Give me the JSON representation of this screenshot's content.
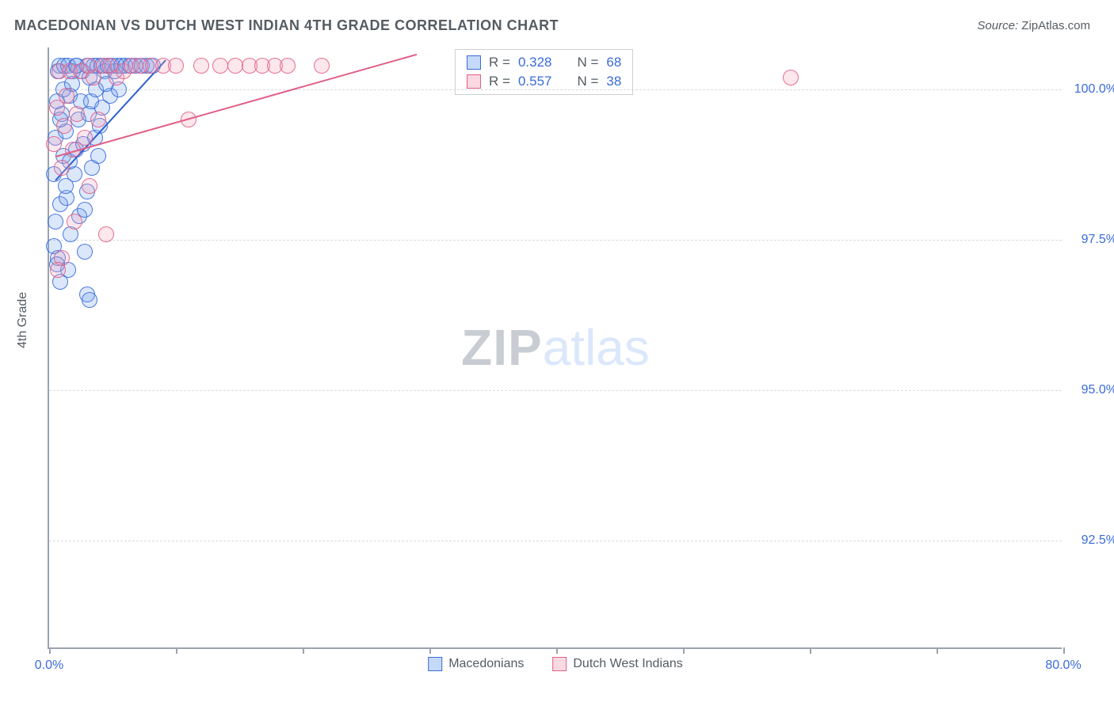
{
  "title": "MACEDONIAN VS DUTCH WEST INDIAN 4TH GRADE CORRELATION CHART",
  "source_label": "Source:",
  "source_value": "ZipAtlas.com",
  "ylabel": "4th Grade",
  "watermark": {
    "part1": "ZIP",
    "part2": "atlas"
  },
  "chart": {
    "type": "scatter",
    "background_color": "#ffffff",
    "grid_color": "#d6dbe0",
    "axis_color": "#9aa3ad",
    "tick_label_color": "#3a6bd8",
    "xlim": [
      0,
      80
    ],
    "ylim": [
      90.7,
      100.7
    ],
    "y_ticks": [
      92.5,
      95.0,
      97.5,
      100.0
    ],
    "y_tick_labels": [
      "92.5%",
      "95.0%",
      "97.5%",
      "100.0%"
    ],
    "x_ticks": [
      0,
      10,
      20,
      30,
      40,
      50,
      60,
      70,
      80
    ],
    "x_tick_labels": {
      "0": "0.0%",
      "80": "80.0%"
    },
    "marker_radius": 10,
    "marker_fill_opacity": 0.25,
    "marker_stroke_opacity": 0.9,
    "series": [
      {
        "name": "Macedonians",
        "color_fill": "#6e9ff0",
        "color_stroke": "#3a6bd8",
        "R": "0.328",
        "N": "68",
        "trend": {
          "x1": 0.5,
          "y1": 98.5,
          "x2": 9.2,
          "y2": 100.5,
          "color": "#2e5fd0",
          "width": 2
        },
        "points": [
          [
            0.4,
            98.6
          ],
          [
            0.5,
            99.2
          ],
          [
            0.6,
            99.8
          ],
          [
            0.7,
            100.3
          ],
          [
            0.8,
            100.4
          ],
          [
            0.9,
            98.1
          ],
          [
            1.0,
            99.6
          ],
          [
            1.1,
            98.9
          ],
          [
            1.2,
            100.4
          ],
          [
            1.3,
            99.3
          ],
          [
            1.4,
            98.2
          ],
          [
            1.5,
            100.4
          ],
          [
            1.6,
            99.9
          ],
          [
            1.7,
            97.6
          ],
          [
            1.9,
            100.3
          ],
          [
            2.0,
            98.6
          ],
          [
            2.1,
            99.0
          ],
          [
            2.2,
            100.4
          ],
          [
            2.3,
            99.5
          ],
          [
            2.4,
            97.9
          ],
          [
            2.6,
            100.3
          ],
          [
            2.7,
            99.1
          ],
          [
            2.8,
            98.0
          ],
          [
            3.0,
            100.4
          ],
          [
            3.1,
            99.6
          ],
          [
            3.2,
            100.2
          ],
          [
            3.4,
            98.7
          ],
          [
            3.5,
            100.4
          ],
          [
            3.6,
            99.2
          ],
          [
            3.8,
            100.4
          ],
          [
            3.9,
            98.9
          ],
          [
            4.1,
            100.4
          ],
          [
            4.2,
            99.7
          ],
          [
            4.4,
            100.3
          ],
          [
            4.6,
            100.4
          ],
          [
            4.8,
            99.9
          ],
          [
            5.0,
            100.4
          ],
          [
            5.2,
            100.3
          ],
          [
            5.4,
            100.4
          ],
          [
            5.7,
            100.4
          ],
          [
            0.4,
            97.4
          ],
          [
            0.5,
            97.8
          ],
          [
            0.7,
            97.2
          ],
          [
            0.9,
            99.5
          ],
          [
            1.1,
            100.0
          ],
          [
            1.3,
            98.4
          ],
          [
            1.6,
            98.8
          ],
          [
            1.8,
            100.1
          ],
          [
            2.1,
            100.4
          ],
          [
            2.5,
            99.8
          ],
          [
            3.0,
            98.3
          ],
          [
            3.3,
            99.8
          ],
          [
            3.7,
            100.0
          ],
          [
            4.0,
            99.4
          ],
          [
            4.5,
            100.1
          ],
          [
            5.5,
            100.0
          ],
          [
            6.0,
            100.4
          ],
          [
            6.4,
            100.4
          ],
          [
            6.8,
            100.4
          ],
          [
            7.3,
            100.4
          ],
          [
            7.7,
            100.4
          ],
          [
            8.2,
            100.4
          ],
          [
            0.9,
            96.8
          ],
          [
            1.5,
            97.0
          ],
          [
            2.8,
            97.3
          ],
          [
            3.0,
            96.6
          ],
          [
            3.2,
            96.5
          ],
          [
            0.6,
            97.1
          ]
        ]
      },
      {
        "name": "Dutch West Indians",
        "color_fill": "#f29fb8",
        "color_stroke": "#e15f86",
        "R": "0.557",
        "N": "38",
        "trend": {
          "x1": 0.5,
          "y1": 98.9,
          "x2": 29.0,
          "y2": 100.6,
          "color": "#e15f86",
          "width": 2
        },
        "points": [
          [
            0.4,
            99.1
          ],
          [
            0.6,
            99.7
          ],
          [
            0.8,
            100.3
          ],
          [
            1.0,
            98.7
          ],
          [
            1.2,
            99.4
          ],
          [
            1.4,
            99.9
          ],
          [
            1.6,
            100.3
          ],
          [
            1.9,
            99.0
          ],
          [
            2.2,
            99.6
          ],
          [
            2.5,
            100.3
          ],
          [
            2.8,
            99.2
          ],
          [
            3.1,
            100.4
          ],
          [
            3.5,
            100.2
          ],
          [
            3.9,
            99.5
          ],
          [
            4.3,
            100.4
          ],
          [
            4.8,
            100.4
          ],
          [
            5.3,
            100.2
          ],
          [
            5.9,
            100.3
          ],
          [
            6.5,
            100.4
          ],
          [
            7.2,
            100.4
          ],
          [
            8.0,
            100.4
          ],
          [
            1.0,
            97.2
          ],
          [
            2.0,
            97.8
          ],
          [
            4.5,
            97.6
          ],
          [
            9.0,
            100.4
          ],
          [
            10.0,
            100.4
          ],
          [
            11.0,
            99.5
          ],
          [
            12.0,
            100.4
          ],
          [
            13.5,
            100.4
          ],
          [
            14.7,
            100.4
          ],
          [
            15.8,
            100.4
          ],
          [
            16.8,
            100.4
          ],
          [
            17.8,
            100.4
          ],
          [
            18.8,
            100.4
          ],
          [
            21.5,
            100.4
          ],
          [
            0.7,
            97.0
          ],
          [
            58.5,
            100.2
          ],
          [
            3.2,
            98.4
          ]
        ]
      }
    ],
    "legend_labels": {
      "R": "R =",
      "N": "N ="
    }
  }
}
